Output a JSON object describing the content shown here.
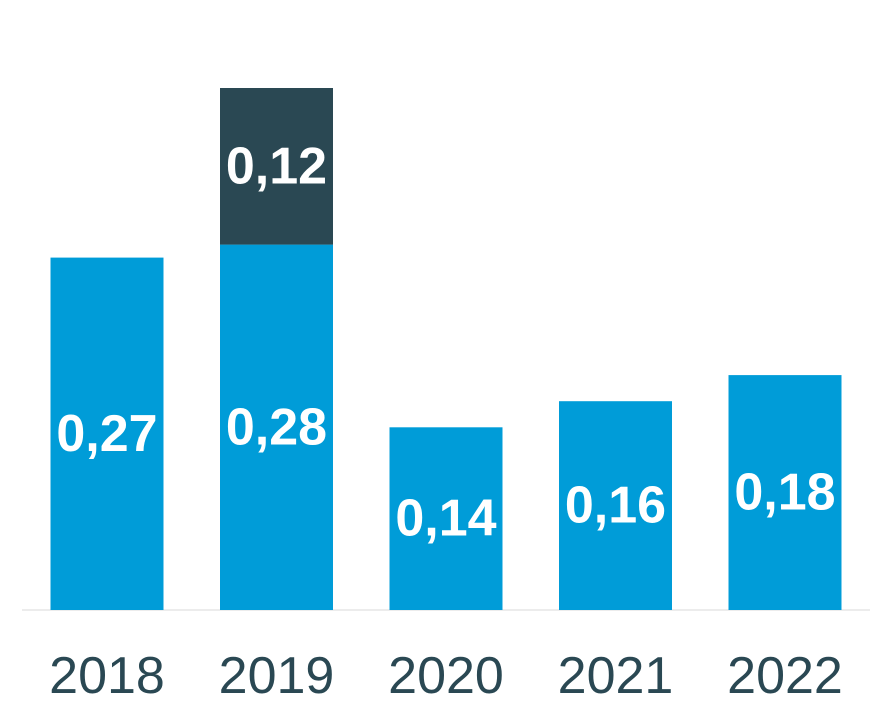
{
  "chart_data": {
    "type": "bar",
    "stacked": true,
    "categories": [
      "2018",
      "2019",
      "2020",
      "2021",
      "2022"
    ],
    "series": [
      {
        "values": [
          0.27,
          0.28,
          0.14,
          0.16,
          0.18
        ],
        "labels": [
          "0,27",
          "0,28",
          "0,14",
          "0,16",
          "0,18"
        ],
        "color": "#009CD8"
      },
      {
        "values": [
          null,
          0.12,
          null,
          null,
          null
        ],
        "labels": [
          "",
          "0,12",
          "",
          "",
          ""
        ],
        "color": "#2A4853"
      }
    ],
    "title": "",
    "xlabel": "",
    "ylabel": "",
    "ylim": [
      0,
      0.4
    ],
    "grid": false,
    "legend": "none",
    "colors": {
      "label_inside": "#FFFFFF",
      "tick_label": "#2A4853",
      "baseline": "#E6E6E6"
    }
  }
}
